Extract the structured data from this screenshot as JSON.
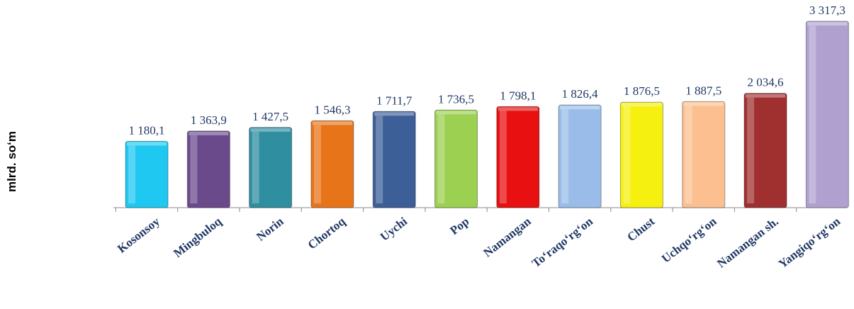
{
  "chart_data": {
    "type": "bar",
    "y_axis_label": "mlrd. so‘m",
    "categories": [
      "Kosonsoy",
      "Mingbuloq",
      "Norin",
      "Chortoq",
      "Uychi",
      "Pop",
      "Namangan",
      "To‘raqo‘rg‘on",
      "Chust",
      "Uchqo‘rg‘on",
      "Namangan sh.",
      "Yangiqo‘rg‘on"
    ],
    "values": [
      1180.1,
      1363.9,
      1427.5,
      1546.3,
      1711.7,
      1736.5,
      1798.1,
      1826.4,
      1876.5,
      1887.5,
      2034.6,
      3317.3
    ],
    "value_labels": [
      "1 180,1",
      "1 363,9",
      "1 427,5",
      "1 546,3",
      "1 711,7",
      "1 736,5",
      "1 798,1",
      "1 826,4",
      "1 876,5",
      "1 887,5",
      "2 034,6",
      "3 317,3"
    ],
    "colors": [
      "#1ec8f0",
      "#6b4a8c",
      "#2f8ea0",
      "#e8741a",
      "#3c5f98",
      "#9bd050",
      "#e81010",
      "#99bde8",
      "#f5f010",
      "#fcc090",
      "#a03030",
      "#b0a0d0"
    ],
    "ylim": [
      0,
      3400
    ]
  }
}
